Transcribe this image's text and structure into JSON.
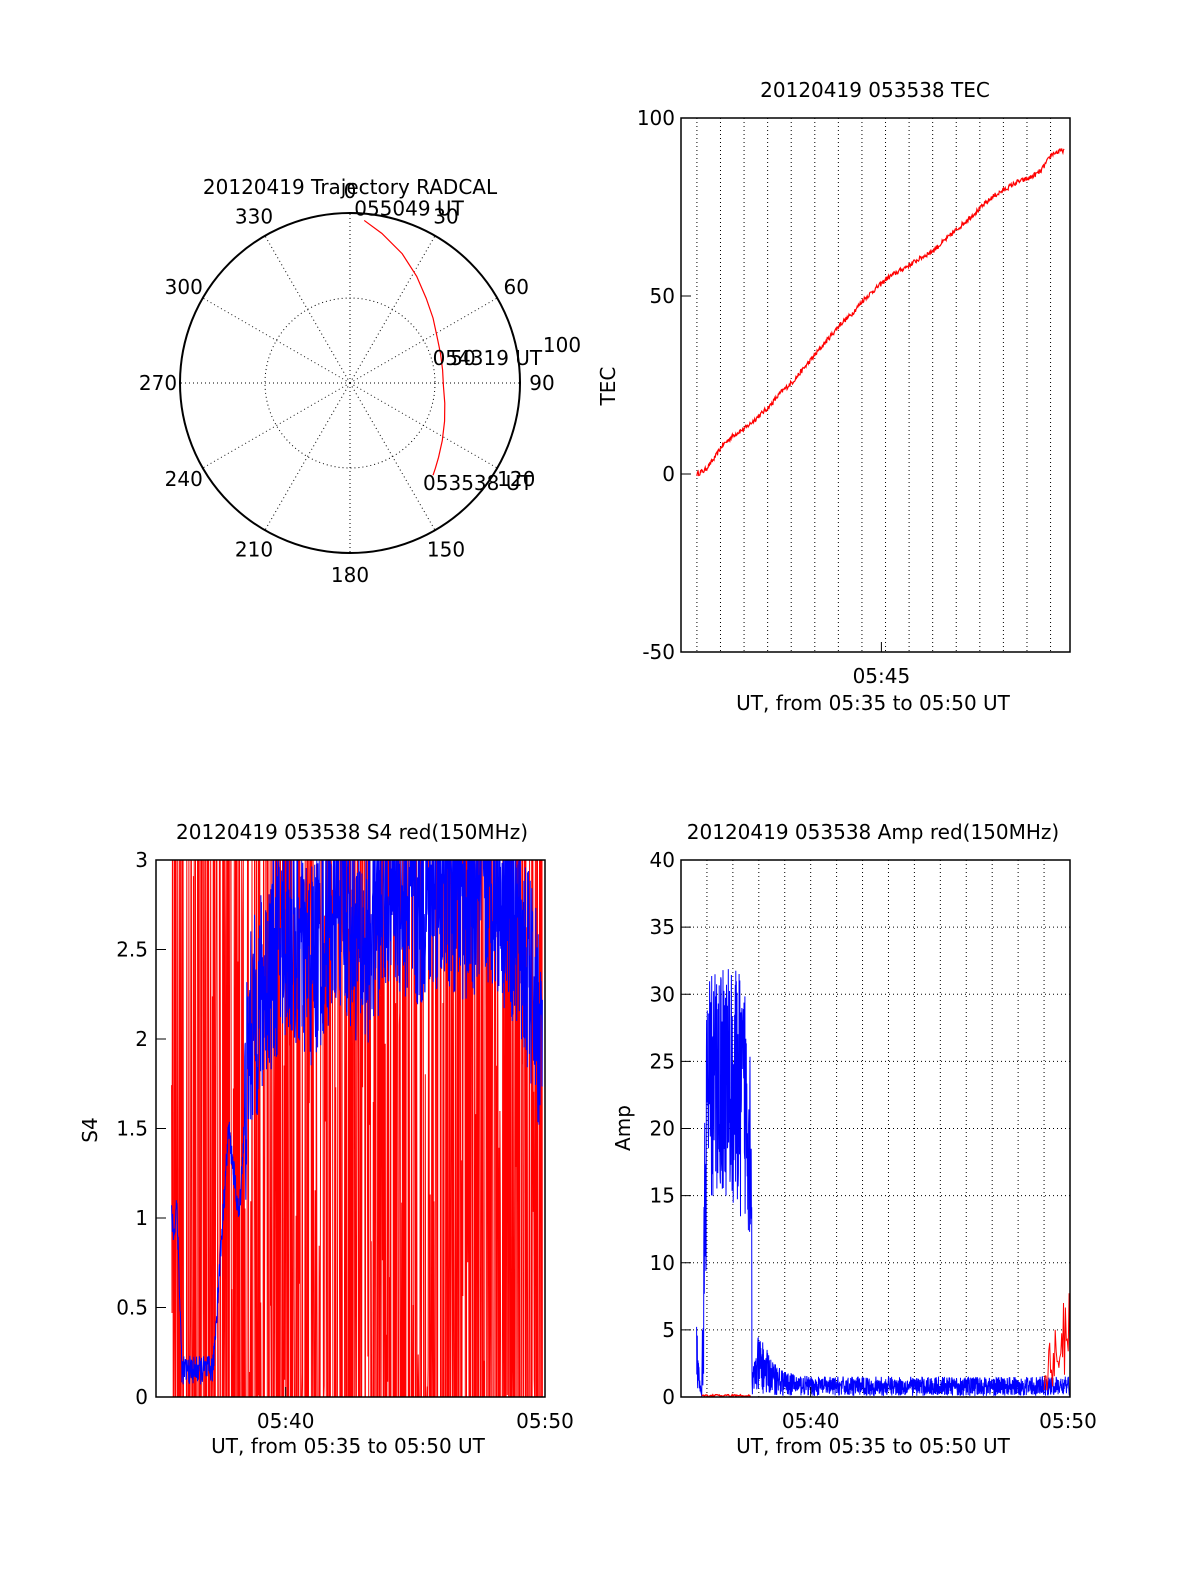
{
  "chart_data": [
    {
      "type": "polar",
      "title": "20120419 Trajectory RADCAL",
      "angle_labels": [
        "0",
        "30",
        "60",
        "90",
        "120",
        "150",
        "180",
        "210",
        "240",
        "270",
        "300",
        "330"
      ],
      "radial_label": "100",
      "radial_mid_label": "50",
      "rmax": 100,
      "trajectory": {
        "color": "#ff0000",
        "points": [
          [
            5,
            96
          ],
          [
            12,
            90
          ],
          [
            22,
            82
          ],
          [
            32,
            74
          ],
          [
            42,
            67
          ],
          [
            52,
            62
          ],
          [
            62,
            58
          ],
          [
            72,
            56
          ],
          [
            82,
            55
          ],
          [
            92,
            55
          ],
          [
            102,
            57
          ],
          [
            112,
            60
          ],
          [
            122,
            64
          ],
          [
            130,
            68
          ],
          [
            135,
            71
          ],
          [
            138,
            73
          ]
        ]
      },
      "annotations": [
        {
          "text": "055049 UT",
          "az": 5,
          "r": 96
        },
        {
          "text": "054319 UT",
          "az": 82,
          "r": 55
        },
        {
          "text": "053538 UT",
          "az": 138,
          "r": 73
        }
      ]
    },
    {
      "type": "line",
      "title": "20120419 053538 TEC",
      "xlabel": "UT, from 05:35 to 05:50 UT",
      "ylabel": "TEC",
      "xlim": [
        0,
        660
      ],
      "ylim": [
        -50,
        100
      ],
      "xticks": [
        {
          "x": 340,
          "label": "05:45"
        }
      ],
      "yticks": [
        -50,
        0,
        50,
        100
      ],
      "grid": "x-only",
      "series": [
        {
          "color": "#ff0000",
          "x": [
            27,
            40,
            55,
            70,
            90,
            110,
            130,
            150,
            170,
            190,
            210,
            230,
            250,
            270,
            290,
            310,
            330,
            350,
            370,
            390,
            410,
            430,
            450,
            470,
            490,
            510,
            530,
            550,
            570,
            590,
            610,
            630,
            650
          ],
          "y": [
            0,
            1,
            4,
            8,
            11,
            13,
            16,
            19,
            23,
            26,
            30,
            34,
            38,
            42,
            45,
            49,
            52,
            55,
            57,
            59,
            61,
            63,
            66,
            69,
            72,
            75,
            78,
            80,
            82,
            83,
            85,
            90,
            91
          ]
        }
      ]
    },
    {
      "type": "line",
      "title": "20120419 053538 S4 red(150MHz)",
      "xlabel": "UT, from 05:35 to 05:50 UT",
      "ylabel": "S4",
      "xlim": [
        0,
        15
      ],
      "ylim": [
        0,
        3
      ],
      "xticks": [
        {
          "x": 5,
          "label": "05:40"
        },
        {
          "x": 15,
          "label": "05:50"
        }
      ],
      "yticks": [
        {
          "v": 0,
          "label": "0"
        },
        {
          "v": 0.5,
          "label": "0.5"
        },
        {
          "v": 1,
          "label": "1"
        },
        {
          "v": 1.5,
          "label": "1.5"
        },
        {
          "v": 2,
          "label": "2"
        },
        {
          "v": 2.5,
          "label": "2.5"
        },
        {
          "v": 3,
          "label": "3"
        }
      ],
      "grid": "none",
      "series": [
        {
          "color": "#ff0000",
          "x": [
            0.6,
            14.9
          ],
          "y": [
            0,
            3
          ],
          "style": "dense-noise"
        },
        {
          "color": "#0000ff",
          "x": [
            0.6,
            0.7,
            0.8,
            1.0,
            1.5,
            2.0,
            2.2,
            2.8,
            3.2,
            3.6,
            4.0,
            4.4,
            5.0,
            6.0,
            7.0,
            8.0,
            9.0,
            10.0,
            11.0,
            12.0,
            13.0,
            14.0,
            14.9
          ],
          "y": [
            1.0,
            0.9,
            1.1,
            0.15,
            0.15,
            0.15,
            0.16,
            1.5,
            1.0,
            2.0,
            2.2,
            2.4,
            2.6,
            2.4,
            2.8,
            2.5,
            2.9,
            2.7,
            2.9,
            2.8,
            2.9,
            2.6,
            2.0
          ],
          "style": "dense-noise"
        }
      ]
    },
    {
      "type": "line",
      "title": "20120419 053538 Amp red(150MHz)",
      "xlabel": "UT, from 05:35 to 05:50 UT",
      "ylabel": "Amp",
      "xlim": [
        0,
        15
      ],
      "ylim": [
        0,
        40
      ],
      "xticks": [
        {
          "x": 5,
          "label": "05:40"
        },
        {
          "x": 15,
          "label": "05:50"
        }
      ],
      "yticks": [
        0,
        5,
        10,
        15,
        20,
        25,
        30,
        35,
        40
      ],
      "grid": "both-dotted",
      "series": [
        {
          "color": "#0000ff",
          "x": [
            0.6,
            0.7,
            0.8,
            1.0,
            1.5,
            2.0,
            2.5,
            2.7,
            2.75,
            3.0,
            3.5,
            4.0,
            5.0,
            6.0,
            7.0,
            8.0,
            9.0,
            10.0,
            11.0,
            12.0,
            13.0,
            14.0,
            15.0
          ],
          "y": [
            3,
            1,
            0,
            22,
            24,
            23,
            22,
            20,
            1,
            2.5,
            1.5,
            1.0,
            0.8,
            0.8,
            0.8,
            0.8,
            0.8,
            0.8,
            0.8,
            0.8,
            0.8,
            0.8,
            0.8
          ],
          "style": "dense-noise"
        },
        {
          "color": "#ff0000",
          "x": [
            0.8,
            2.7,
            14.0,
            14.5,
            15.0
          ],
          "y": [
            0.1,
            0.1,
            1.5,
            3.5,
            4.5
          ],
          "style": "dense-noise"
        }
      ]
    }
  ]
}
